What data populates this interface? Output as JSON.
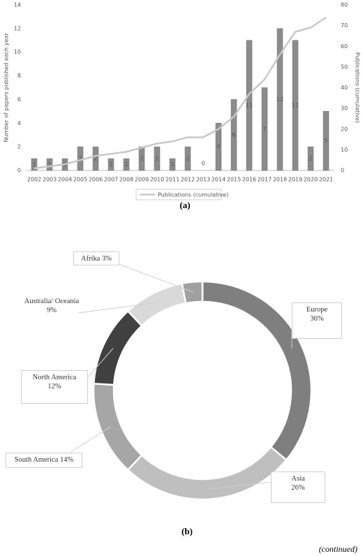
{
  "chart_data": [
    {
      "type": "combo",
      "caption": "(a)",
      "y_label": "Number of papers published each year",
      "y2_label": "Publications (cumulative)",
      "categories": [
        "2002",
        "2003",
        "2004",
        "2005",
        "2006",
        "2007",
        "2008",
        "2009",
        "2010",
        "2011",
        "2012",
        "2013",
        "2014",
        "2015",
        "2016",
        "2017",
        "2018",
        "2019",
        "2020",
        "2021"
      ],
      "series": [
        {
          "type": "bar",
          "color": "#8c8c8c",
          "values": [
            1,
            1,
            1,
            2,
            2,
            1,
            1,
            2,
            2,
            1,
            2,
            0,
            4,
            6,
            11,
            7,
            12,
            11,
            2,
            5
          ]
        },
        {
          "name": "Publications (cumulative)",
          "type": "line",
          "axis": "y2",
          "color": "#c8c8c8",
          "values": [
            1,
            2,
            3,
            5,
            7,
            8,
            9,
            11,
            13,
            14,
            16,
            16,
            20,
            26,
            37,
            44,
            56,
            67,
            69,
            74
          ]
        }
      ],
      "ylim": [
        0,
        14
      ],
      "yticks": [
        0,
        2,
        4,
        6,
        8,
        10,
        12,
        14
      ],
      "y2lim": [
        0,
        80
      ],
      "y2ticks": [
        0,
        10,
        20,
        30,
        40,
        50,
        60,
        70,
        80
      ],
      "legend": "bottom"
    },
    {
      "type": "donut",
      "caption": "(b)",
      "categories": [
        "Europe",
        "Asia",
        "South America",
        "North America",
        "Australia/ Oceania",
        "Afrika"
      ],
      "values": [
        36,
        26,
        14,
        12,
        9,
        3
      ],
      "value_labels": [
        "36%",
        "26%",
        "14%",
        "12%",
        "9%",
        "3%"
      ],
      "colors": [
        "#7f7f7f",
        "#bfbfbf",
        "#a6a6a6",
        "#404040",
        "#d9d9d9",
        "#a0a0a0"
      ]
    }
  ],
  "footer": "(continued)"
}
